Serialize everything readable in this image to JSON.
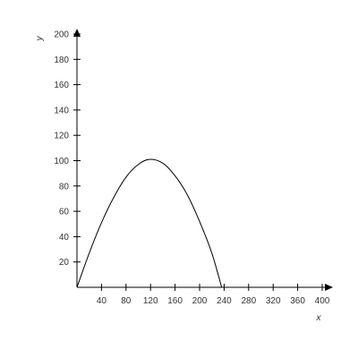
{
  "chart_data": {
    "type": "line",
    "title": "",
    "xlabel": "x",
    "ylabel": "y",
    "xlim": [
      0,
      400
    ],
    "ylim": [
      0,
      200
    ],
    "x_ticks": [
      40,
      80,
      120,
      160,
      200,
      240,
      280,
      320,
      360,
      400
    ],
    "y_ticks": [
      20,
      40,
      60,
      80,
      100,
      120,
      140,
      160,
      180,
      200
    ],
    "grid": false,
    "series": [
      {
        "x": [
          0,
          20,
          40,
          60,
          80,
          100,
          118,
          140,
          160,
          180,
          200,
          220,
          236
        ],
        "y": [
          0,
          27,
          51,
          71,
          87,
          97,
          101,
          98,
          88,
          73,
          52,
          27,
          0
        ]
      }
    ],
    "colors": {
      "axis": "#000000",
      "line": "#000000"
    }
  }
}
